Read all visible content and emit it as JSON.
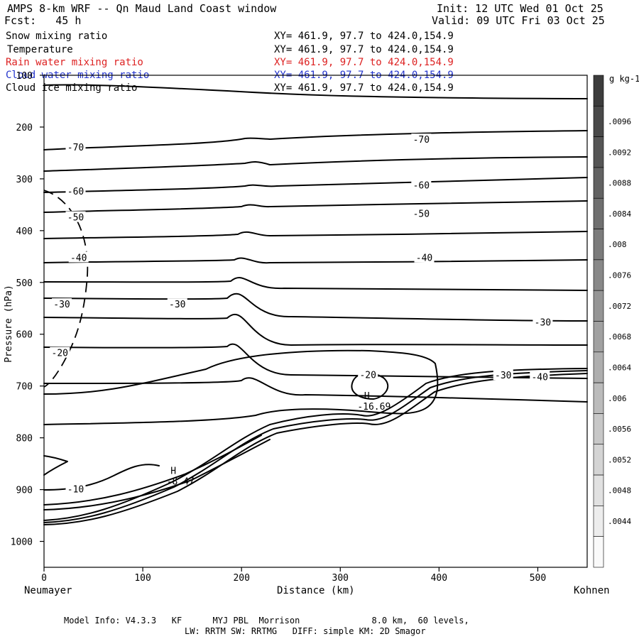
{
  "header": {
    "title": "AMPS 8-km WRF -- Qn Maud Land Coast window",
    "init": "Init: 12 UTC Wed 01 Oct 25",
    "fcst": "Fcst:   45 h",
    "valid": "Valid: 09 UTC Fri 03 Oct 25"
  },
  "legend": [
    {
      "name": "Snow mixing ratio",
      "xy": "XY= 461.9, 97.7 to 424.0,154.9",
      "color": "#000000"
    },
    {
      "name": "Temperature",
      "xy": "XY= 461.9, 97.7 to 424.0,154.9",
      "color": "#000000"
    },
    {
      "name": "Rain water mixing ratio",
      "xy": "XY= 461.9, 97.7 to 424.0,154.9",
      "color": "#dd2222"
    },
    {
      "name": "Cloud water mixing ratio",
      "xy": "XY= 461.9, 97.7 to 424.0,154.9",
      "color": "#2233cc"
    },
    {
      "name": "Cloud ice mixing ratio",
      "xy": "XY= 461.9, 97.7 to 424.0,154.9",
      "color": "#000000"
    }
  ],
  "axes": {
    "ylabel": "Pressure (hPa)",
    "xlabel": "Distance (km)",
    "left_station": "Neumayer",
    "right_station": "Kohnen"
  },
  "colorbar": {
    "unit": "g kg-1",
    "levels": [
      ".0096",
      ".0092",
      ".0088",
      ".0084",
      ".008",
      ".0076",
      ".0072",
      ".0068",
      ".0064",
      ".006",
      ".0056",
      ".0052",
      ".0048",
      ".0044"
    ]
  },
  "footer": {
    "line1": "Model Info: V4.3.3   KF      MYJ PBL  Morrison              8.0 km,  60 levels,",
    "line2": "LW: RRTM SW: RRTMG   DIFF: simple KM: 2D Smagor"
  },
  "chart_data": {
    "type": "line",
    "title": "AMPS 8-km WRF -- Qn Maud Land Coast window",
    "xlabel": "Distance (km)",
    "ylabel": "Pressure (hPa)",
    "xlim": [
      0,
      550
    ],
    "ylim": [
      1050,
      100
    ],
    "x_ticks": [
      0,
      100,
      200,
      300,
      400,
      500
    ],
    "y_ticks": [
      100,
      200,
      300,
      400,
      500,
      600,
      700,
      800,
      900,
      1000
    ],
    "series_description": "Temperature contours (degC) along cross-section",
    "contour_labels": [
      {
        "text": "-70",
        "x": 32,
        "p": 240
      },
      {
        "text": "-70",
        "x": 382,
        "p": 225
      },
      {
        "text": "-60",
        "x": 32,
        "p": 325
      },
      {
        "text": "-60",
        "x": 382,
        "p": 313
      },
      {
        "text": "-50",
        "x": 32,
        "p": 375
      },
      {
        "text": "-50",
        "x": 382,
        "p": 368
      },
      {
        "text": "-40",
        "x": 35,
        "p": 453
      },
      {
        "text": "-40",
        "x": 385,
        "p": 453
      },
      {
        "text": "-30",
        "x": 18,
        "p": 543
      },
      {
        "text": "-30",
        "x": 135,
        "p": 543
      },
      {
        "text": "-30",
        "x": 505,
        "p": 578
      },
      {
        "text": "-30",
        "x": 465,
        "p": 680
      },
      {
        "text": "-40",
        "x": 502,
        "p": 683
      },
      {
        "text": "-20",
        "x": 16,
        "p": 637
      },
      {
        "text": "-20",
        "x": 328,
        "p": 679
      },
      {
        "text": "-10",
        "x": 32,
        "p": 900
      }
    ],
    "extrema": [
      {
        "label": "H",
        "value": "-16.69",
        "x": 327,
        "p": 725
      },
      {
        "label": "H",
        "value": "-8.47",
        "x": 131,
        "p": 870
      }
    ]
  }
}
